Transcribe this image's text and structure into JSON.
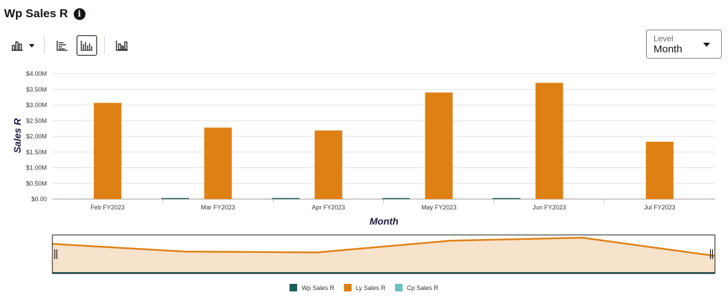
{
  "header": {
    "title": "Wp Sales R"
  },
  "toolbar": {
    "buttons": [
      {
        "icon": "bar-chart-type-icon"
      },
      {
        "icon": "horizontal-bar-icon"
      },
      {
        "icon": "vertical-bar-icon"
      },
      {
        "icon": "combo-bar-icon"
      }
    ]
  },
  "level_select": {
    "label": "Level",
    "value": "Month"
  },
  "chart_data": {
    "type": "bar",
    "categories": [
      "Feb FY2023",
      "Mar FY2023",
      "Apr FY2023",
      "May FY2023",
      "Jun FY2023",
      "Jul FY2023"
    ],
    "series": [
      {
        "name": "Wp Sales R",
        "color": "#1f5c5c",
        "values": [
          0,
          0.01,
          0.01,
          0.01,
          0.01,
          0
        ]
      },
      {
        "name": "Ly Sales R",
        "color": "#df8014",
        "values": [
          3.07,
          2.28,
          2.19,
          3.4,
          3.71,
          1.83
        ]
      },
      {
        "name": "Cp Sales R",
        "color": "#6cc1bd",
        "values": [
          0,
          0,
          0,
          0,
          0,
          0
        ]
      }
    ],
    "xlabel": "Month",
    "ylabel": "Sales R",
    "ylim": [
      0,
      4.0
    ],
    "yticks": [
      "$0.00",
      "$0.50M",
      "$1.00M",
      "$1.50M",
      "$2.00M",
      "$2.50M",
      "$3.00M",
      "$3.50M",
      "$4.00M"
    ],
    "grid": true,
    "legend_position": "bottom"
  }
}
